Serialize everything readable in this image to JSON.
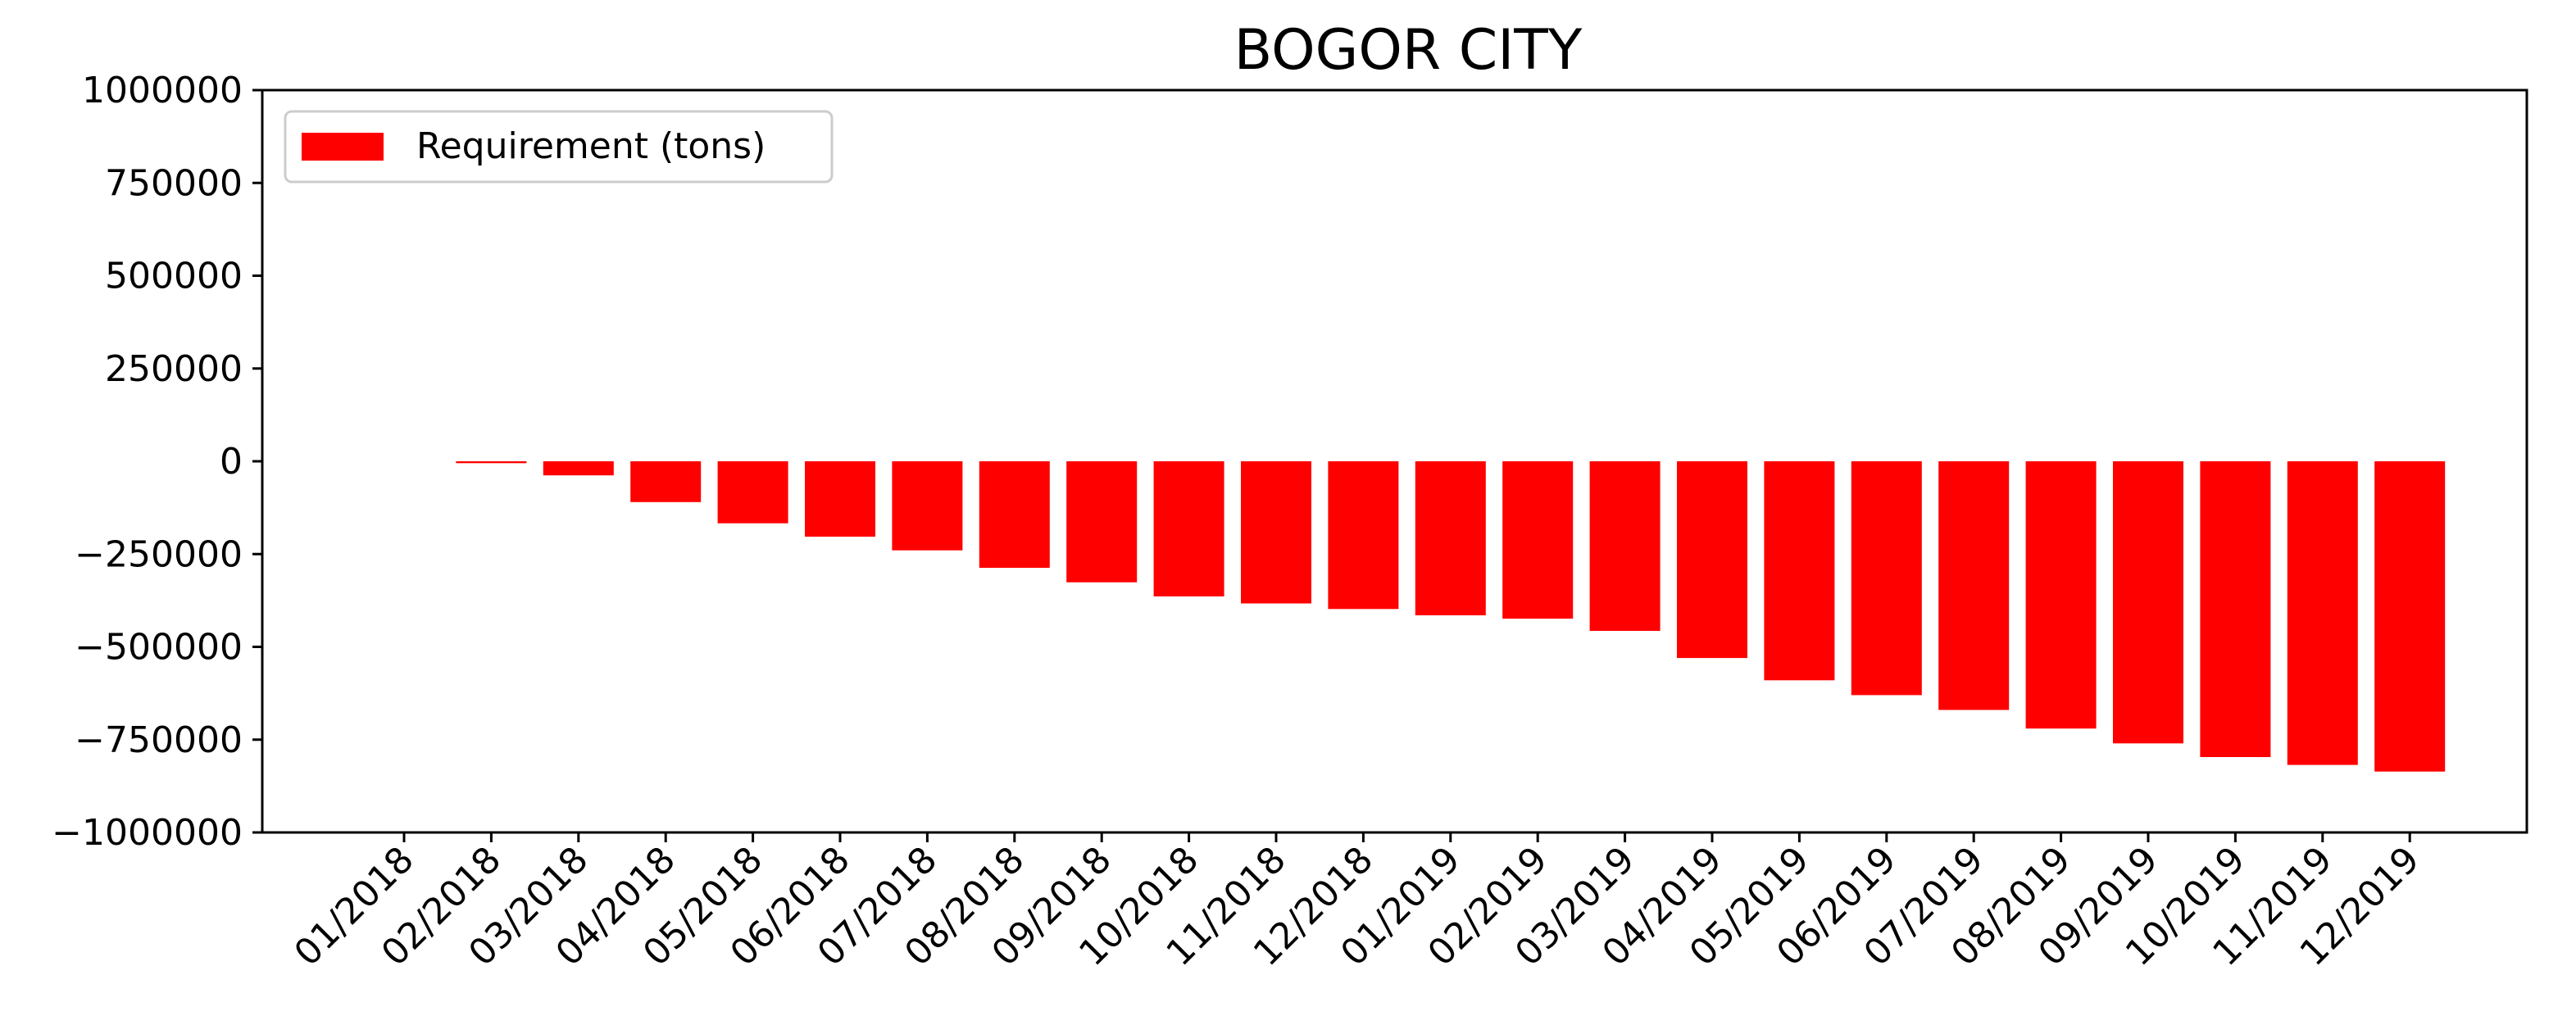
{
  "chart_data": {
    "type": "bar",
    "title": "BOGOR CITY",
    "xlabel": "",
    "ylabel": "",
    "ylim": [
      -1000000,
      1000000
    ],
    "yticks": [
      1000000,
      750000,
      500000,
      250000,
      0,
      -250000,
      -500000,
      -750000,
      -1000000
    ],
    "ytick_labels": [
      "1000000",
      "750000",
      "500000",
      "250000",
      "0",
      "−250000",
      "−500000",
      "−750000",
      "−1000000"
    ],
    "categories": [
      "01/2018",
      "02/2018",
      "03/2018",
      "04/2018",
      "05/2018",
      "06/2018",
      "07/2018",
      "08/2018",
      "09/2018",
      "10/2018",
      "11/2018",
      "12/2018",
      "01/2019",
      "02/2019",
      "03/2019",
      "04/2019",
      "05/2019",
      "06/2019",
      "07/2019",
      "08/2019",
      "09/2019",
      "10/2019",
      "11/2019",
      "12/2019"
    ],
    "grid": false,
    "legend_position": "top-left",
    "series": [
      {
        "name": "Requirement (tons)",
        "color": "#ff0000",
        "values": [
          0,
          -5000,
          -38000,
          -110000,
          -167000,
          -203000,
          -240000,
          -287000,
          -326000,
          -364000,
          -383000,
          -398000,
          -415000,
          -424000,
          -457000,
          -530000,
          -590000,
          -630000,
          -670000,
          -720000,
          -760000,
          -797000,
          -818000,
          -836000
        ]
      }
    ]
  }
}
